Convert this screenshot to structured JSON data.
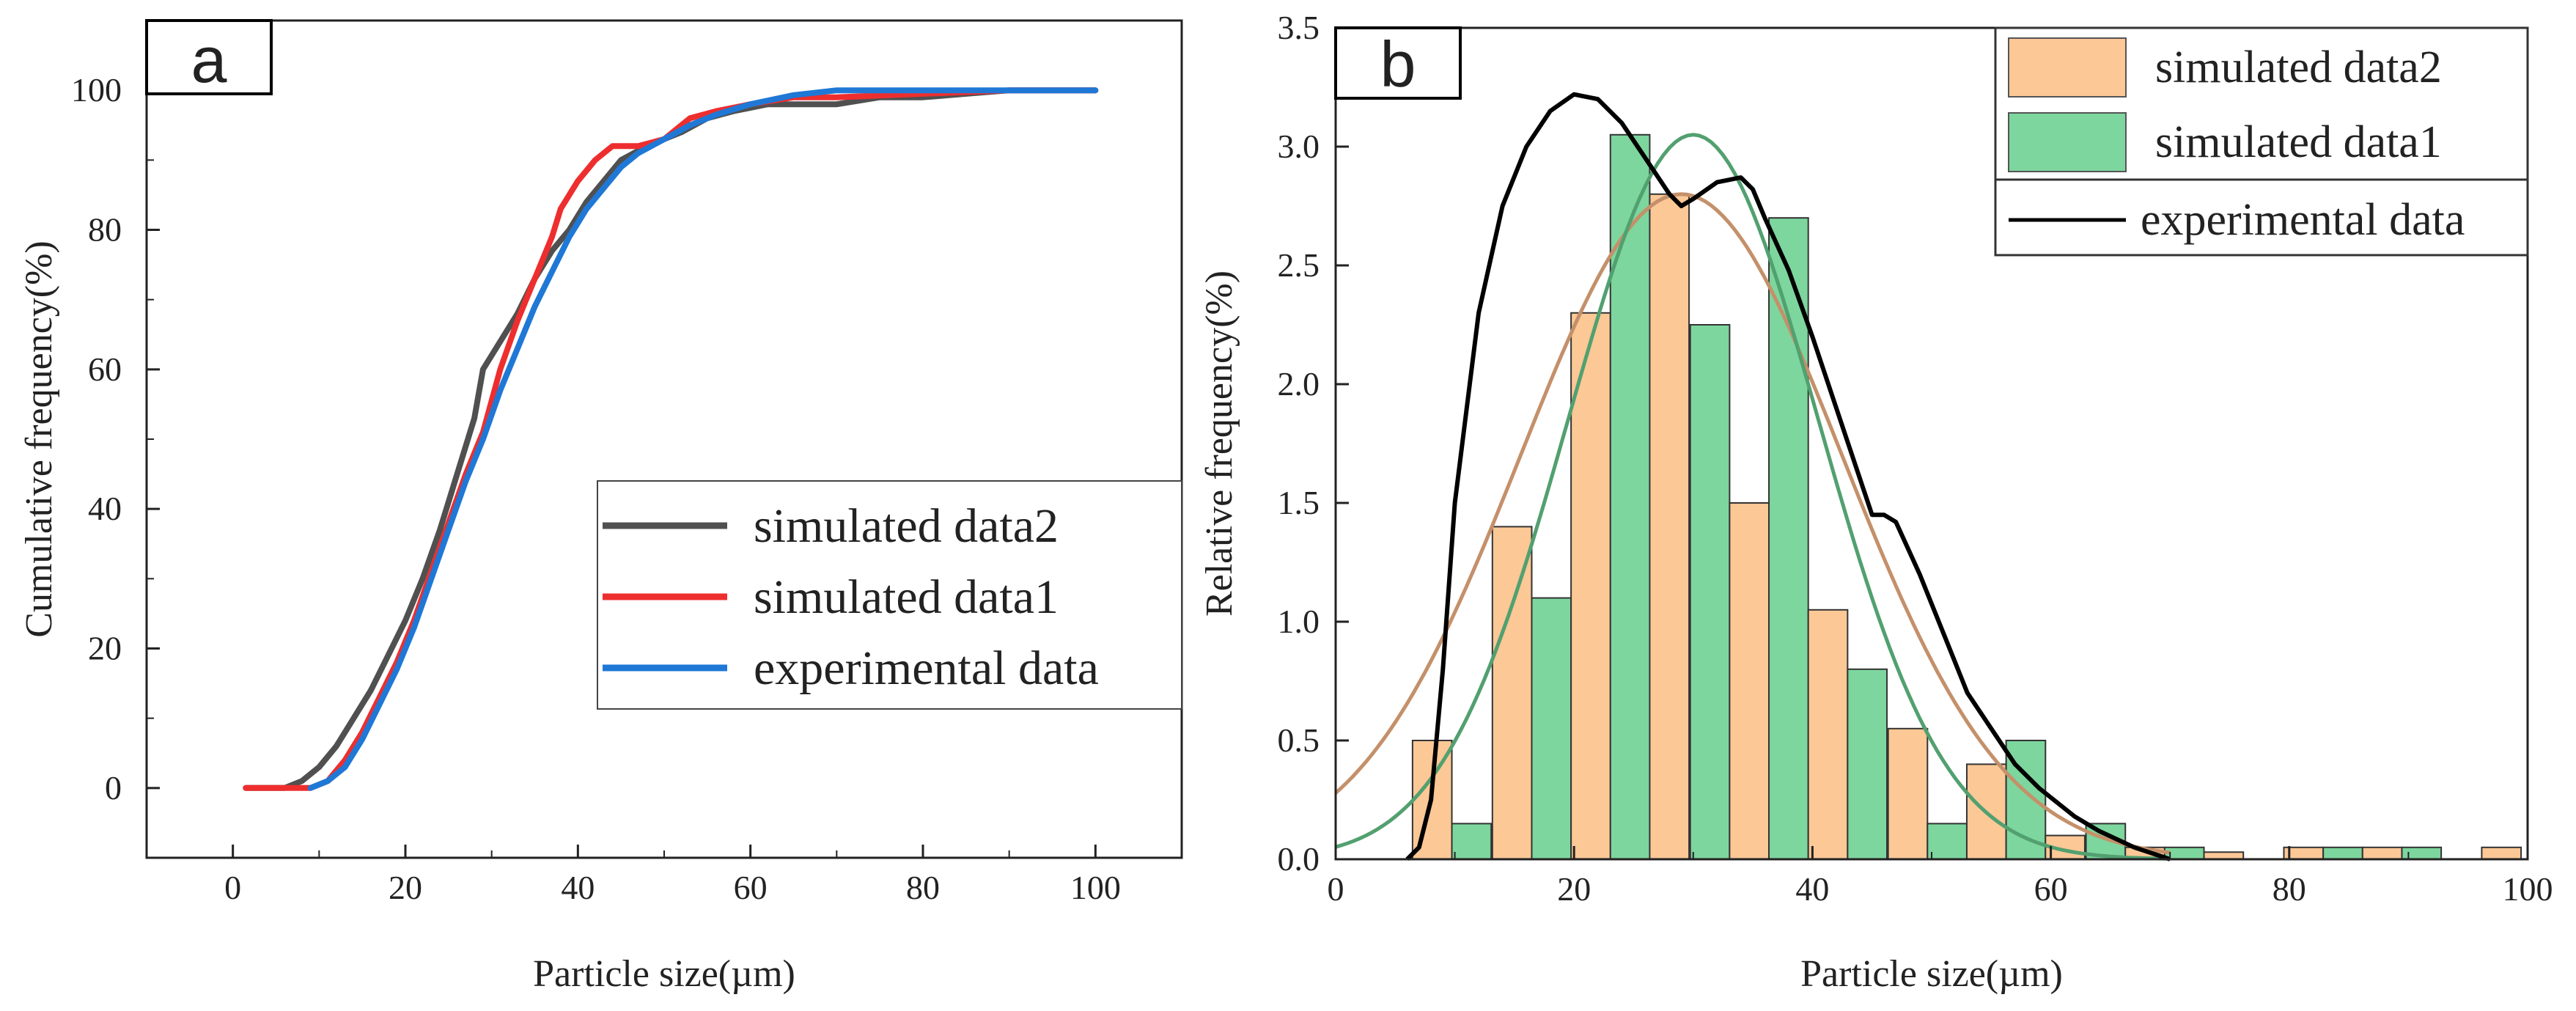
{
  "chart_data": [
    {
      "panel": "a",
      "type": "line",
      "xlabel": "Particle size(µm)",
      "ylabel": "Cumulative frequency(%)",
      "xlim": [
        -10,
        110
      ],
      "ylim": [
        -10,
        110
      ],
      "xticks": [
        0,
        20,
        40,
        60,
        80,
        100
      ],
      "yticks": [
        0,
        20,
        40,
        60,
        80,
        100
      ],
      "legend_position": "right",
      "series": [
        {
          "name": "simulated data2",
          "color": "#505050",
          "points": [
            [
              1.5,
              0
            ],
            [
              6,
              0
            ],
            [
              8,
              1
            ],
            [
              10,
              3
            ],
            [
              12,
              6
            ],
            [
              14,
              10
            ],
            [
              16,
              14
            ],
            [
              18,
              19
            ],
            [
              20,
              24
            ],
            [
              22,
              30
            ],
            [
              24,
              37
            ],
            [
              26,
              45
            ],
            [
              28,
              53
            ],
            [
              29,
              60
            ],
            [
              31,
              64
            ],
            [
              33,
              68
            ],
            [
              35,
              73
            ],
            [
              37,
              77
            ],
            [
              39,
              80
            ],
            [
              41,
              84
            ],
            [
              43,
              87
            ],
            [
              45,
              90
            ],
            [
              48,
              92
            ],
            [
              52,
              94
            ],
            [
              55,
              96
            ],
            [
              58,
              97
            ],
            [
              62,
              98
            ],
            [
              66,
              98
            ],
            [
              70,
              98
            ],
            [
              75,
              99
            ],
            [
              80,
              99
            ],
            [
              85,
              99.5
            ],
            [
              90,
              100
            ],
            [
              100,
              100
            ]
          ]
        },
        {
          "name": "simulated data1",
          "color": "#ee2e2e",
          "points": [
            [
              1.5,
              0
            ],
            [
              6,
              0
            ],
            [
              9,
              0
            ],
            [
              11,
              1
            ],
            [
              13,
              4
            ],
            [
              15,
              8
            ],
            [
              17,
              13
            ],
            [
              19,
              18
            ],
            [
              21,
              24
            ],
            [
              23,
              31
            ],
            [
              25,
              38
            ],
            [
              27,
              45
            ],
            [
              29,
              51
            ],
            [
              31,
              60
            ],
            [
              33,
              67
            ],
            [
              35,
              73
            ],
            [
              37,
              79
            ],
            [
              38,
              83
            ],
            [
              40,
              87
            ],
            [
              42,
              90
            ],
            [
              44,
              92
            ],
            [
              47,
              92
            ],
            [
              50,
              93
            ],
            [
              53,
              96
            ],
            [
              56,
              97
            ],
            [
              60,
              98
            ],
            [
              65,
              99
            ],
            [
              70,
              99
            ],
            [
              80,
              99.5
            ],
            [
              90,
              100
            ],
            [
              100,
              100
            ]
          ]
        },
        {
          "name": "experimental data",
          "color": "#1f78d6",
          "points": [
            [
              9,
              0
            ],
            [
              11,
              1
            ],
            [
              13,
              3
            ],
            [
              15,
              7
            ],
            [
              17,
              12
            ],
            [
              19,
              17
            ],
            [
              21,
              23
            ],
            [
              23,
              30
            ],
            [
              25,
              37
            ],
            [
              27,
              44
            ],
            [
              29,
              50
            ],
            [
              31,
              57
            ],
            [
              33,
              63
            ],
            [
              35,
              69
            ],
            [
              37,
              74
            ],
            [
              39,
              79
            ],
            [
              41,
              83
            ],
            [
              43,
              86
            ],
            [
              45,
              89
            ],
            [
              47,
              91
            ],
            [
              50,
              93
            ],
            [
              53,
              95
            ],
            [
              56,
              96.5
            ],
            [
              60,
              98
            ],
            [
              65,
              99.3
            ],
            [
              70,
              100
            ],
            [
              80,
              100
            ],
            [
              90,
              100
            ],
            [
              100,
              100
            ]
          ]
        }
      ]
    },
    {
      "panel": "b",
      "type": "bar",
      "xlabel": "Particle size(µm)",
      "ylabel": "Relative frequency(%)",
      "xlim": [
        0,
        100
      ],
      "ylim": [
        0,
        3.5
      ],
      "xticks": [
        0,
        20,
        40,
        60,
        80,
        100
      ],
      "yticks": [
        "0.0",
        "0.5",
        "1.0",
        "1.5",
        "2.0",
        "2.5",
        "3.0",
        "3.5"
      ],
      "legend_position": "top-right",
      "bar_width": 3.3,
      "series": [
        {
          "name": "simulated data2",
          "color": "#fcc896",
          "bars": [
            [
              8.1,
              0.5
            ],
            [
              14.8,
              1.4
            ],
            [
              21.4,
              2.3
            ],
            [
              28.0,
              2.8
            ],
            [
              34.7,
              1.5
            ],
            [
              41.3,
              1.05
            ],
            [
              48.0,
              0.55
            ],
            [
              54.6,
              0.4
            ],
            [
              61.2,
              0.1
            ],
            [
              67.9,
              0.05
            ],
            [
              74.5,
              0.03
            ],
            [
              81.2,
              0.05
            ],
            [
              87.8,
              0.05
            ],
            [
              97.8,
              0.05
            ]
          ]
        },
        {
          "name": "simulated data1",
          "color": "#7dd69e",
          "bars": [
            [
              11.4,
              0.15
            ],
            [
              18.1,
              1.1
            ],
            [
              24.7,
              3.05
            ],
            [
              31.4,
              2.25
            ],
            [
              38.0,
              2.7
            ],
            [
              44.6,
              0.8
            ],
            [
              51.3,
              0.15
            ],
            [
              57.9,
              0.5
            ],
            [
              64.6,
              0.15
            ],
            [
              71.2,
              0.05
            ],
            [
              84.5,
              0.05
            ],
            [
              91.1,
              0.05
            ]
          ]
        }
      ],
      "fit_curves": [
        {
          "name": "simulated data2 fit",
          "color": "#c4906a",
          "mean": 29,
          "sd": 13.5,
          "peak": 2.8
        },
        {
          "name": "simulated data1 fit",
          "color": "#52a070",
          "mean": 30,
          "sd": 10.5,
          "peak": 3.05
        }
      ],
      "line_series": [
        {
          "name": "experimental data",
          "color": "#000000",
          "points": [
            [
              6,
              0
            ],
            [
              7,
              0.05
            ],
            [
              8,
              0.25
            ],
            [
              9,
              0.8
            ],
            [
              10,
              1.5
            ],
            [
              12,
              2.3
            ],
            [
              14,
              2.75
            ],
            [
              16,
              3.0
            ],
            [
              18,
              3.15
            ],
            [
              20,
              3.22
            ],
            [
              22,
              3.2
            ],
            [
              24,
              3.1
            ],
            [
              26,
              2.95
            ],
            [
              28,
              2.8
            ],
            [
              29,
              2.75
            ],
            [
              30,
              2.78
            ],
            [
              32,
              2.85
            ],
            [
              34,
              2.87
            ],
            [
              35,
              2.82
            ],
            [
              36,
              2.7
            ],
            [
              38,
              2.48
            ],
            [
              40,
              2.2
            ],
            [
              42,
              1.9
            ],
            [
              44,
              1.6
            ],
            [
              45,
              1.45
            ],
            [
              46,
              1.45
            ],
            [
              47,
              1.42
            ],
            [
              49,
              1.2
            ],
            [
              51,
              0.95
            ],
            [
              53,
              0.7
            ],
            [
              55,
              0.55
            ],
            [
              57,
              0.4
            ],
            [
              59,
              0.3
            ],
            [
              62,
              0.18
            ],
            [
              64,
              0.12
            ],
            [
              67,
              0.05
            ],
            [
              70,
              0.0
            ]
          ]
        }
      ]
    }
  ],
  "labels": {
    "panel_a": "a",
    "panel_b": "b"
  }
}
